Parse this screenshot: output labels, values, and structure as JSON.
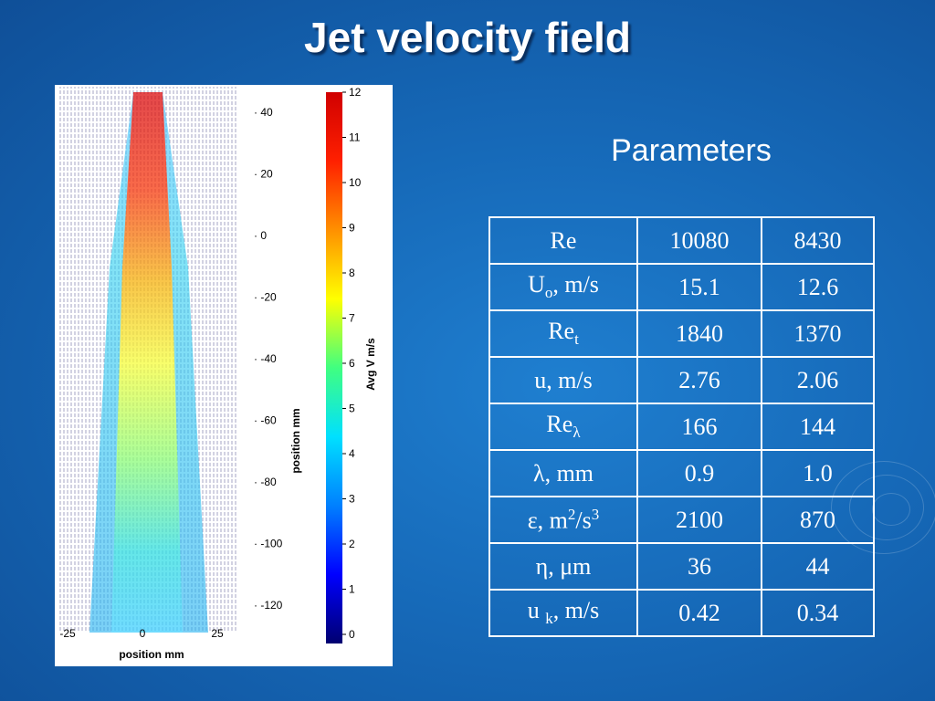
{
  "slide": {
    "title": "Jet velocity field"
  },
  "figure": {
    "y_axis_label": "position mm",
    "x_axis_label": "position mm",
    "y_ticks": [
      "40",
      "20",
      "0",
      "-20",
      "-40",
      "-60",
      "-80",
      "-100",
      "-120"
    ],
    "x_ticks": [
      "-25",
      "0",
      "25"
    ],
    "colorbar_label": "Avg V m/s",
    "colorbar_ticks": [
      "12",
      "11",
      "10",
      "9",
      "8",
      "7",
      "6",
      "5",
      "4",
      "3",
      "2",
      "1",
      "0"
    ],
    "colorbar_colors": [
      "#000070",
      "#0000ff",
      "#0080ff",
      "#00e0ff",
      "#40ff80",
      "#ffff00",
      "#ff9000",
      "#ff2000",
      "#d00000"
    ]
  },
  "parameters": {
    "heading": "Parameters",
    "rows": [
      {
        "label": "Re",
        "base": "Re",
        "sub": "",
        "sup": "",
        "suffix": "",
        "a": "10080",
        "b": "8430"
      },
      {
        "label": "Uo, m/s",
        "base": "U",
        "sub": "o",
        "sup": "",
        "suffix": ", m/s",
        "a": "15.1",
        "b": "12.6"
      },
      {
        "label": "Ret",
        "base": "Re",
        "sub": "t",
        "sup": "",
        "suffix": "",
        "a": "1840",
        "b": "1370"
      },
      {
        "label": "u, m/s",
        "base": "u, m/s",
        "sub": "",
        "sup": "",
        "suffix": "",
        "a": "2.76",
        "b": "2.06"
      },
      {
        "label": "Reλ",
        "base": "Re",
        "sub": "λ",
        "sup": "",
        "suffix": "",
        "a": "166",
        "b": "144"
      },
      {
        "label": "λ, mm",
        "base": "λ, mm",
        "sub": "",
        "sup": "",
        "suffix": "",
        "a": "0.9",
        "b": "1.0"
      },
      {
        "label": "ε, m2/s3",
        "base": "ε, m",
        "sup": "2",
        "sub": "",
        "suffix": "/s",
        "sup2": "3",
        "a": "2100",
        "b": "870"
      },
      {
        "label": "η, μm",
        "base": "η, μm",
        "sub": "",
        "sup": "",
        "suffix": "",
        "a": "36",
        "b": "44"
      },
      {
        "label": "u k, m/s",
        "base": "u ",
        "sub": "k",
        "sup": "",
        "suffix": ", m/s",
        "a": "0.42",
        "b": "0.34"
      }
    ]
  }
}
